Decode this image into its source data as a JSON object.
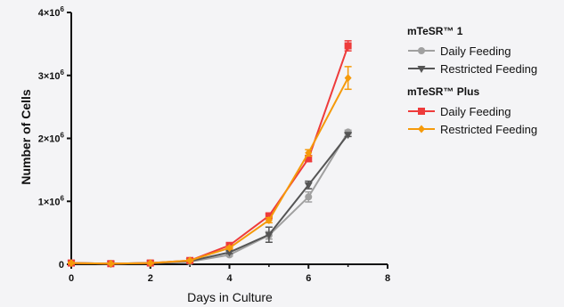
{
  "chart_data": {
    "type": "line",
    "xlabel": "Days in Culture",
    "ylabel": "Number of Cells",
    "xlim": [
      0,
      8
    ],
    "ylim": [
      0,
      4000000
    ],
    "x_ticks": [
      "0",
      "2",
      "4",
      "6",
      "8"
    ],
    "y_ticks": [
      {
        "value": 0,
        "base": "0",
        "exp": ""
      },
      {
        "value": 1000000,
        "base": "1×10",
        "exp": "6"
      },
      {
        "value": 2000000,
        "base": "2×10",
        "exp": "6"
      },
      {
        "value": 3000000,
        "base": "3×10",
        "exp": "6"
      },
      {
        "value": 4000000,
        "base": "4×10",
        "exp": "6"
      }
    ],
    "grid": false,
    "legend_position": "right",
    "groups": [
      {
        "title": "mTeSR™ 1",
        "series_indices": [
          0,
          1
        ]
      },
      {
        "title": "mTeSR™ Plus",
        "series_indices": [
          2,
          3
        ]
      }
    ],
    "series": [
      {
        "name": "Daily Feeding",
        "group": "mTeSR™ 1",
        "color": "#a0a0a0",
        "marker": "circle",
        "x": [
          0,
          1,
          2,
          3,
          4,
          5,
          6,
          7
        ],
        "y": [
          20000,
          10000,
          20000,
          40000,
          150000,
          460000,
          1070000,
          2100000
        ],
        "err": [
          10000,
          5000,
          5000,
          10000,
          20000,
          60000,
          80000,
          30000
        ]
      },
      {
        "name": "Restricted Feeding",
        "group": "mTeSR™ 1",
        "color": "#555555",
        "marker": "triangle-down",
        "x": [
          0,
          1,
          2,
          3,
          4,
          5,
          6,
          7
        ],
        "y": [
          20000,
          10000,
          20000,
          50000,
          190000,
          470000,
          1260000,
          2060000
        ],
        "err": [
          10000,
          5000,
          5000,
          10000,
          20000,
          120000,
          60000,
          30000
        ]
      },
      {
        "name": "Daily Feeding",
        "group": "mTeSR™ Plus",
        "color": "#ee3b3b",
        "marker": "square",
        "x": [
          0,
          1,
          2,
          3,
          4,
          5,
          6,
          7
        ],
        "y": [
          20000,
          10000,
          20000,
          60000,
          300000,
          770000,
          1680000,
          3470000
        ],
        "err": [
          10000,
          5000,
          5000,
          10000,
          20000,
          30000,
          50000,
          80000
        ]
      },
      {
        "name": "Restricted Feeding",
        "group": "mTeSR™ Plus",
        "color": "#f59a0a",
        "marker": "diamond",
        "x": [
          0,
          1,
          2,
          3,
          4,
          5,
          6,
          7
        ],
        "y": [
          20000,
          10000,
          20000,
          60000,
          260000,
          700000,
          1770000,
          2960000
        ],
        "err": [
          10000,
          5000,
          5000,
          10000,
          20000,
          40000,
          50000,
          180000
        ]
      }
    ]
  }
}
